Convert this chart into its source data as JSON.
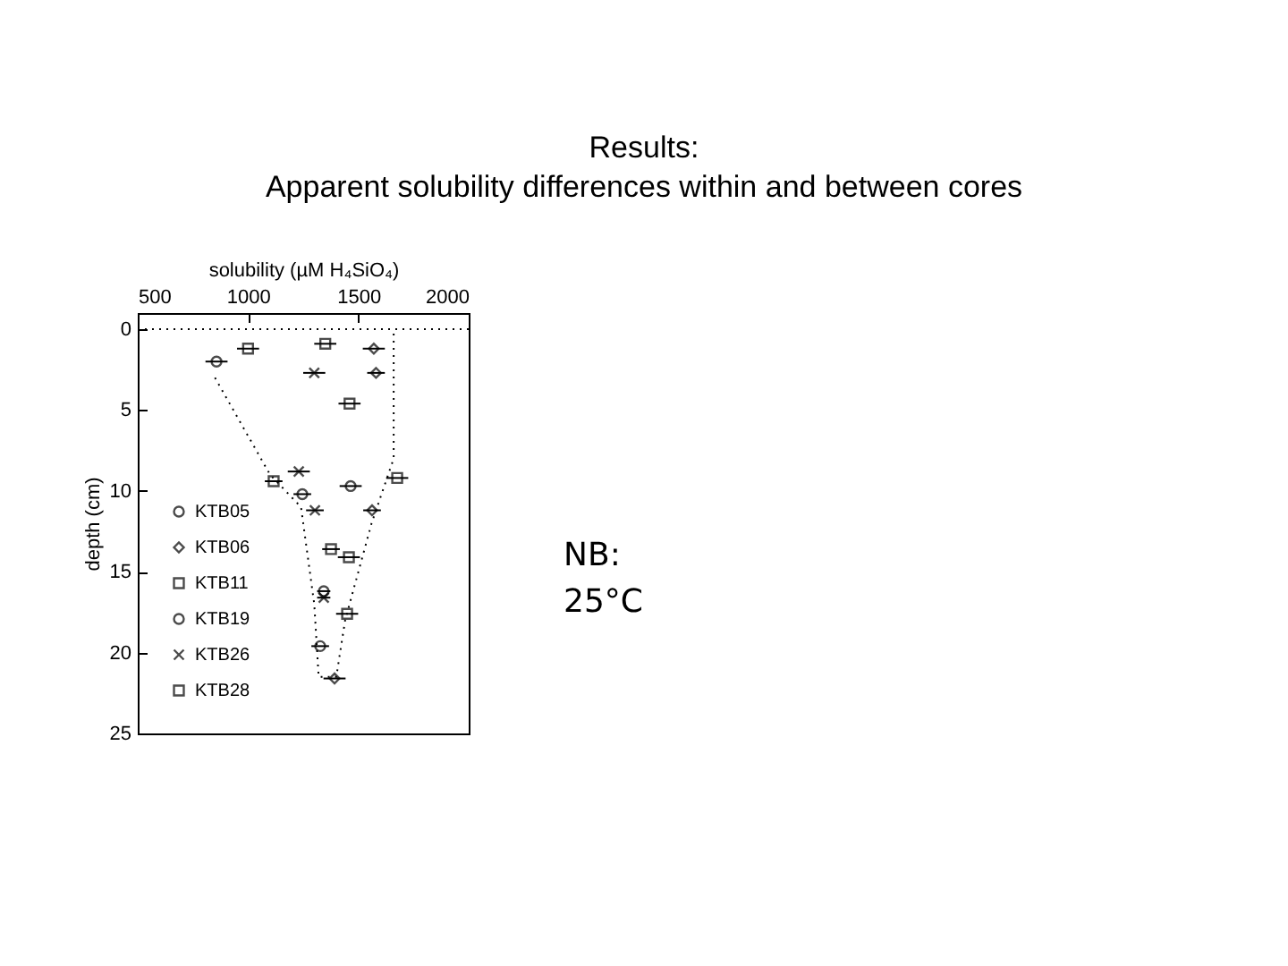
{
  "chart_data": {
    "type": "scatter",
    "title": "Results:\nApparent solubility differences within and between cores",
    "xlabel": "solubility   (µM H₄SiO₄)",
    "ylabel": "depth (cm)",
    "annotations": [
      "NB:",
      "25°C"
    ],
    "xlim": [
      500,
      2000
    ],
    "xticks": [
      500,
      1000,
      1500,
      2000
    ],
    "ylim": [
      25,
      -1
    ],
    "yticks": [
      0,
      5,
      10,
      15,
      20,
      25
    ],
    "grid": false,
    "legend": "bottom left",
    "ref_lines": [
      {
        "axis": "y",
        "value": 0,
        "line_style": "dotted",
        "color": "#000000"
      }
    ],
    "series": [
      {
        "name": "KTB05",
        "color": "#000000",
        "marker": "circle",
        "x": [
          1465
        ],
        "values": [
          9.7
        ],
        "xerrors": [
          50
        ]
      },
      {
        "name": "KTB06",
        "color": "#000000",
        "marker": "diamond",
        "x": [
          1570,
          1580,
          1562,
          1392
        ],
        "values": [
          1.2,
          2.7,
          11.2,
          21.6
        ],
        "xerrors": [
          50,
          40,
          40,
          50
        ]
      },
      {
        "name": "KTB11",
        "color": "#000000",
        "marker": "square",
        "x": [
          1350,
          1460,
          1676,
          1457,
          1449
        ],
        "values": [
          0.9,
          4.6,
          9.2,
          14.1,
          17.6
        ],
        "xerrors": [
          50,
          50,
          50,
          50,
          50
        ]
      },
      {
        "name": "KTB19",
        "color": "#000000",
        "marker": "circle",
        "x": [
          857,
          1246,
          1343,
          1327
        ],
        "values": [
          2,
          10.2,
          16.2,
          19.6
        ],
        "xerrors": [
          50,
          40,
          30,
          40
        ]
      },
      {
        "name": "KTB26",
        "color": "#000000",
        "marker": "cross",
        "x": [
          1300,
          1230,
          1303,
          1343
        ],
        "values": [
          2.7,
          8.8,
          11.2,
          16.6
        ],
        "xerrors": [
          50,
          50,
          40,
          30
        ]
      },
      {
        "name": "KTB28",
        "color": "#000000",
        "marker": "square",
        "x": [
          1000,
          1116,
          1376
        ],
        "values": [
          1.2,
          9.4,
          13.6
        ],
        "xerrors": [
          50,
          40,
          40
        ]
      },
      {
        "type": "line",
        "line_style": "dotted",
        "color": "#000000",
        "x": [
          850,
          1100,
          1240,
          1300,
          1320,
          1400,
          1440,
          1560,
          1660,
          1660
        ],
        "values": [
          3,
          9,
          11,
          17,
          21.5,
          21.5,
          18,
          12,
          8,
          0
        ]
      }
    ]
  }
}
